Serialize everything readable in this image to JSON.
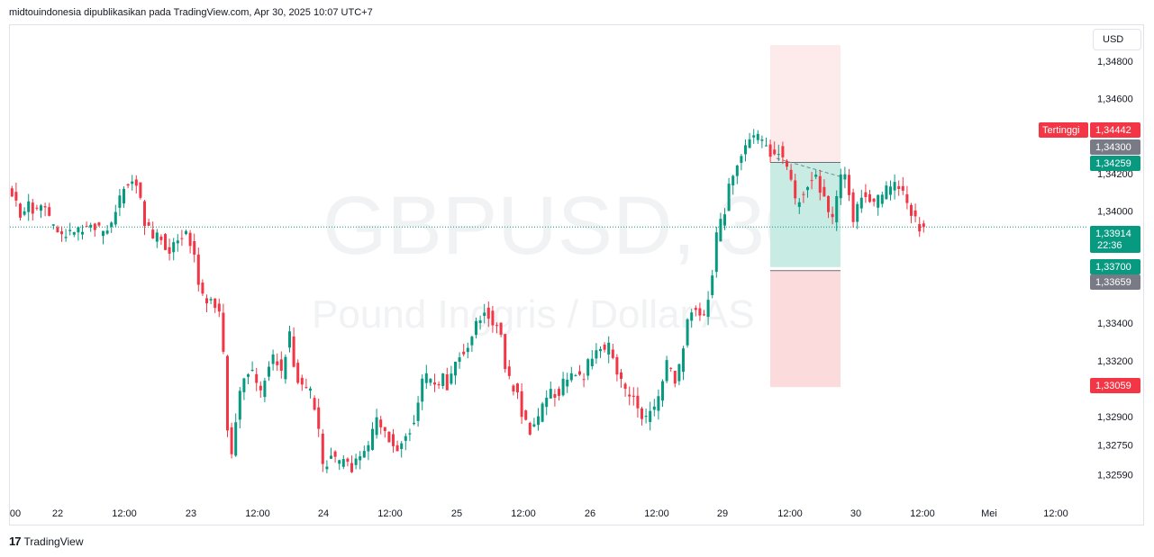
{
  "header": {
    "text": "midtouindonesia dipublikasikan pada TradingView.com, Apr 30, 2025 10:07 UTC+7"
  },
  "currency": "USD",
  "watermark": {
    "symbol": "GBPUSD, 30",
    "name": "Pound Inggris / Dollar AS"
  },
  "footer": {
    "logo": "17",
    "brand": "TradingView"
  },
  "chart_data": {
    "type": "candlestick",
    "y_ticks": [
      "1,34800",
      "1,34600",
      "1,34200",
      "1,34000",
      "1,33400",
      "1,33200",
      "1,32900",
      "1,32750",
      "1,32590"
    ],
    "y_tick_values": [
      1.348,
      1.346,
      1.342,
      1.34,
      1.334,
      1.332,
      1.329,
      1.3275,
      1.3259
    ],
    "x_ticks": [
      "00",
      "22",
      "12:00",
      "23",
      "12:00",
      "24",
      "12:00",
      "25",
      "12:00",
      "26",
      "12:00",
      "29",
      "12:00",
      "30",
      "12:00",
      "Mei",
      "12:00"
    ],
    "path": [
      [
        0,
        1.3414
      ],
      [
        14,
        1.3398
      ],
      [
        22,
        1.3403
      ],
      [
        30,
        1.3399
      ],
      [
        40,
        1.3404
      ],
      [
        48,
        1.3392
      ],
      [
        60,
        1.3386
      ],
      [
        72,
        1.3389
      ],
      [
        84,
        1.3389
      ],
      [
        96,
        1.3392
      ],
      [
        108,
        1.3386
      ],
      [
        118,
        1.3398
      ],
      [
        128,
        1.3411
      ],
      [
        136,
        1.3419
      ],
      [
        144,
        1.3414
      ],
      [
        152,
        1.3394
      ],
      [
        160,
        1.3386
      ],
      [
        170,
        1.3385
      ],
      [
        180,
        1.3379
      ],
      [
        190,
        1.3384
      ],
      [
        198,
        1.3391
      ],
      [
        206,
        1.3378
      ],
      [
        212,
        1.3359
      ],
      [
        220,
        1.3353
      ],
      [
        228,
        1.3349
      ],
      [
        236,
        1.3345
      ],
      [
        240,
        1.3318
      ],
      [
        246,
        1.3265
      ],
      [
        252,
        1.3282
      ],
      [
        258,
        1.3306
      ],
      [
        264,
        1.3315
      ],
      [
        272,
        1.3312
      ],
      [
        280,
        1.3301
      ],
      [
        288,
        1.3313
      ],
      [
        296,
        1.3324
      ],
      [
        304,
        1.3312
      ],
      [
        312,
        1.3335
      ],
      [
        320,
        1.3312
      ],
      [
        328,
        1.3305
      ],
      [
        336,
        1.3303
      ],
      [
        344,
        1.3286
      ],
      [
        350,
        1.3262
      ],
      [
        358,
        1.3269
      ],
      [
        366,
        1.3265
      ],
      [
        374,
        1.3268
      ],
      [
        382,
        1.3263
      ],
      [
        392,
        1.3268
      ],
      [
        402,
        1.3276
      ],
      [
        410,
        1.3289
      ],
      [
        418,
        1.3284
      ],
      [
        426,
        1.3275
      ],
      [
        434,
        1.3271
      ],
      [
        442,
        1.3282
      ],
      [
        450,
        1.3286
      ],
      [
        458,
        1.3306
      ],
      [
        466,
        1.3312
      ],
      [
        474,
        1.3305
      ],
      [
        482,
        1.3311
      ],
      [
        490,
        1.3305
      ],
      [
        498,
        1.3325
      ],
      [
        506,
        1.3322
      ],
      [
        514,
        1.3332
      ],
      [
        522,
        1.3342
      ],
      [
        530,
        1.3346
      ],
      [
        538,
        1.3342
      ],
      [
        546,
        1.3336
      ],
      [
        552,
        1.3318
      ],
      [
        558,
        1.3306
      ],
      [
        566,
        1.3303
      ],
      [
        572,
        1.3288
      ],
      [
        580,
        1.3283
      ],
      [
        588,
        1.3287
      ],
      [
        596,
        1.3302
      ],
      [
        604,
        1.3303
      ],
      [
        612,
        1.3302
      ],
      [
        620,
        1.3312
      ],
      [
        628,
        1.3316
      ],
      [
        636,
        1.3309
      ],
      [
        644,
        1.3318
      ],
      [
        652,
        1.3328
      ],
      [
        660,
        1.3325
      ],
      [
        668,
        1.3328
      ],
      [
        676,
        1.3314
      ],
      [
        684,
        1.3305
      ],
      [
        692,
        1.3301
      ],
      [
        700,
        1.3294
      ],
      [
        708,
        1.3289
      ],
      [
        716,
        1.3292
      ],
      [
        724,
        1.3303
      ],
      [
        732,
        1.332
      ],
      [
        740,
        1.3309
      ],
      [
        748,
        1.332
      ],
      [
        756,
        1.3349
      ],
      [
        762,
        1.3347
      ],
      [
        768,
        1.3342
      ],
      [
        776,
        1.3348
      ],
      [
        782,
        1.3366
      ],
      [
        788,
        1.3392
      ],
      [
        794,
        1.3396
      ],
      [
        800,
        1.3411
      ],
      [
        806,
        1.3423
      ],
      [
        812,
        1.3424
      ],
      [
        818,
        1.3434
      ],
      [
        824,
        1.344
      ],
      [
        832,
        1.3439
      ],
      [
        840,
        1.3435
      ],
      [
        848,
        1.3431
      ],
      [
        856,
        1.3433
      ],
      [
        862,
        1.3424
      ],
      [
        868,
        1.3418
      ],
      [
        874,
        1.3405
      ],
      [
        880,
        1.3408
      ],
      [
        888,
        1.3414
      ],
      [
        896,
        1.3418
      ],
      [
        902,
        1.3411
      ],
      [
        908,
        1.3404
      ],
      [
        914,
        1.3391
      ],
      [
        920,
        1.3406
      ],
      [
        926,
        1.342
      ],
      [
        932,
        1.3414
      ],
      [
        938,
        1.3396
      ],
      [
        944,
        1.3404
      ],
      [
        950,
        1.341
      ],
      [
        958,
        1.3403
      ],
      [
        966,
        1.3406
      ],
      [
        974,
        1.3411
      ],
      [
        982,
        1.3413
      ],
      [
        990,
        1.3413
      ],
      [
        996,
        1.3407
      ],
      [
        1002,
        1.3398
      ],
      [
        1008,
        1.3395
      ],
      [
        1012,
        1.33914
      ]
    ],
    "tags": [
      {
        "label": "Tertinggi",
        "value": "1,34442",
        "color": "#f23645"
      },
      {
        "value": "1,34300",
        "color": "#787b86"
      },
      {
        "value": "1,34259",
        "color": "#089981"
      },
      {
        "value": "1,33914",
        "sub": "22:36",
        "color": "#089981"
      },
      {
        "value": "1,33700",
        "color": "#089981"
      },
      {
        "value": "1,33659",
        "color": "#787b86"
      },
      {
        "value": "1,33059",
        "color": "#f23645"
      }
    ],
    "position": {
      "entry": 1.337,
      "target": 1.34259,
      "stop": 1.33059,
      "colors": {
        "profit": "#c8ebe3",
        "loss": "#fcdbdd"
      }
    },
    "colors": {
      "up": "#089981",
      "down": "#f23645",
      "last_price_line": "#089981"
    },
    "grid": false
  }
}
